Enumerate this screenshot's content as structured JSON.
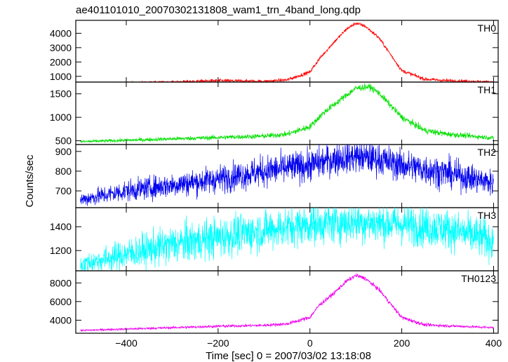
{
  "chart_data": {
    "type": "line",
    "title": "ae401101010_20070302131808_wam1_trn_4band_long.qdp",
    "xlabel": "Time [sec] 0 = 2007/03/02 13:18:08",
    "ylabel": "Counts/sec",
    "xlim": [
      -510,
      410
    ],
    "x_ticks": [
      -400,
      -200,
      0,
      200,
      400
    ],
    "x_tick_labels": [
      "−400",
      "−200",
      "0",
      "200",
      "400"
    ],
    "grid": false,
    "panels": [
      {
        "name": "TH0",
        "color": "#ff0000",
        "ylim": [
          600,
          4900
        ],
        "y_ticks": [
          1000,
          2000,
          3000,
          4000
        ],
        "baseline": 450,
        "noise": 40,
        "x": [
          -500,
          -400,
          -300,
          -200,
          -100,
          -50,
          0,
          20,
          50,
          80,
          100,
          120,
          150,
          200,
          250,
          300,
          400
        ],
        "y": [
          500,
          550,
          600,
          700,
          650,
          750,
          1300,
          2200,
          3300,
          4300,
          4700,
          4500,
          3700,
          1400,
          800,
          700,
          600
        ]
      },
      {
        "name": "TH1",
        "color": "#00e000",
        "ylim": [
          420,
          1750
        ],
        "y_ticks": [
          500,
          1000,
          1500
        ],
        "baseline": 420,
        "noise": 22,
        "x": [
          -500,
          -400,
          -300,
          -200,
          -100,
          -50,
          0,
          30,
          70,
          100,
          130,
          150,
          200,
          250,
          300,
          400
        ],
        "y": [
          480,
          510,
          540,
          570,
          600,
          640,
          800,
          1100,
          1400,
          1620,
          1650,
          1520,
          1000,
          720,
          640,
          560
        ]
      },
      {
        "name": "TH2",
        "color": "#0000ee",
        "ylim": [
          615,
          935
        ],
        "y_ticks": [
          700,
          800,
          900
        ],
        "baseline": 615,
        "noise": 26,
        "x": [
          -500,
          -400,
          -300,
          -200,
          -100,
          0,
          50,
          100,
          150,
          200,
          300,
          400
        ],
        "y": [
          655,
          700,
          730,
          760,
          800,
          830,
          860,
          875,
          860,
          830,
          790,
          740
        ]
      },
      {
        "name": "TH3",
        "color": "#00ffff",
        "ylim": [
          1030,
          1560
        ],
        "y_ticks": [
          1200,
          1400
        ],
        "baseline": 1030,
        "noise": 55,
        "x": [
          -500,
          -400,
          -300,
          -200,
          -100,
          0,
          100,
          200,
          300,
          400
        ],
        "y": [
          1080,
          1170,
          1250,
          1310,
          1370,
          1420,
          1440,
          1420,
          1380,
          1280
        ]
      },
      {
        "name": "TH0123",
        "color": "#ee00ee",
        "ylim": [
          2600,
          9300
        ],
        "y_ticks": [
          4000,
          6000,
          8000
        ],
        "baseline": 2600,
        "noise": 70,
        "x": [
          -500,
          -400,
          -300,
          -200,
          -100,
          -50,
          0,
          20,
          50,
          80,
          100,
          120,
          150,
          200,
          250,
          300,
          400
        ],
        "y": [
          2900,
          3050,
          3200,
          3350,
          3450,
          3600,
          4300,
          5600,
          6800,
          8200,
          8800,
          8500,
          7300,
          4300,
          3500,
          3400,
          3200
        ]
      }
    ]
  }
}
